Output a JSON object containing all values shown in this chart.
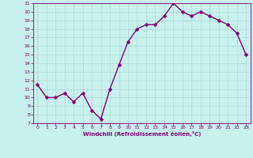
{
  "x": [
    0,
    1,
    2,
    3,
    4,
    5,
    6,
    7,
    8,
    9,
    10,
    11,
    12,
    13,
    14,
    15,
    16,
    17,
    18,
    19,
    20,
    21,
    22,
    23
  ],
  "y": [
    11.5,
    10.0,
    10.0,
    10.5,
    9.5,
    10.5,
    8.5,
    7.5,
    11.0,
    13.8,
    16.5,
    18.0,
    18.5,
    18.5,
    19.5,
    21.0,
    20.0,
    19.5,
    20.0,
    19.5,
    19.0,
    18.5,
    17.5,
    15.0
  ],
  "line_color": "#800080",
  "marker_color": "#800080",
  "bg_color": "#c8f0ec",
  "grid_color": "#b0ddd8",
  "xlabel": "Windchill (Refroidissement éolien,°C)",
  "xlabel_color": "#800080",
  "tick_color": "#800080",
  "spine_color": "#800080",
  "ylim": [
    7,
    21
  ],
  "xlim": [
    -0.5,
    23.5
  ],
  "yticks": [
    7,
    8,
    9,
    10,
    11,
    12,
    13,
    14,
    15,
    16,
    17,
    18,
    19,
    20,
    21
  ],
  "xticks": [
    0,
    1,
    2,
    3,
    4,
    5,
    6,
    7,
    8,
    9,
    10,
    11,
    12,
    13,
    14,
    15,
    16,
    17,
    18,
    19,
    20,
    21,
    22,
    23
  ],
  "marker_size": 2.5,
  "line_width": 1.0
}
